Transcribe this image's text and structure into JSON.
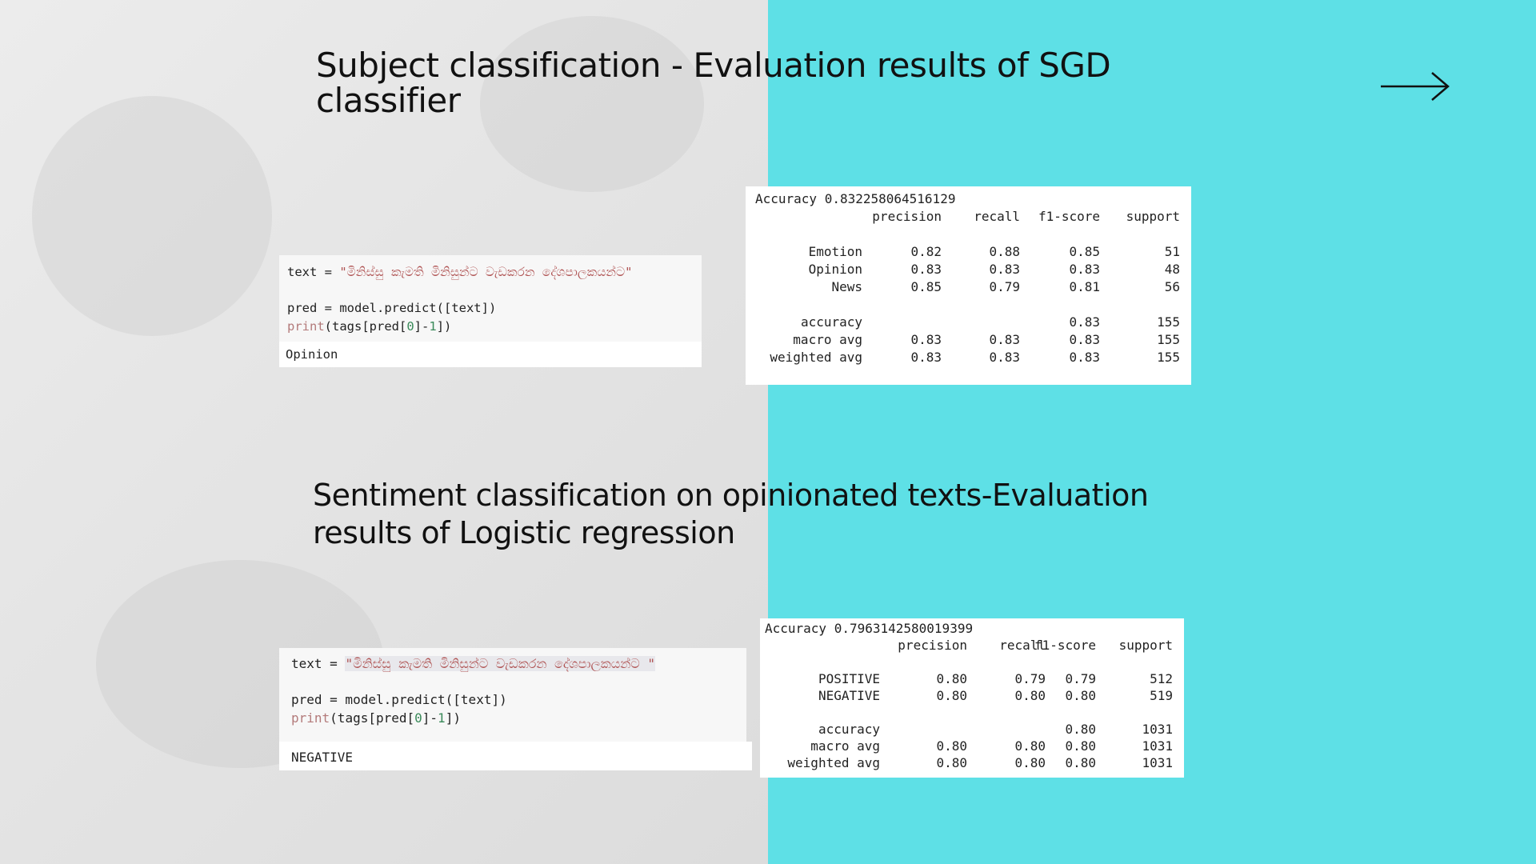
{
  "slide": {
    "title_1": "Subject classification - Evaluation results of SGD classifier",
    "title_2": "Sentiment classification on opinionated texts-Evaluation results of Logistic regression"
  },
  "icons": {
    "next": "right-arrow-icon"
  },
  "colors": {
    "accent": "#5ee0e6",
    "left_panel": "#e6e6e6"
  },
  "code_1": {
    "line_1_prefix": "text = ",
    "line_1_string": "\"මිනිස්සු කැමති මිනිසුන්ට වැඩකරන දේශපාලකයන්ට\"",
    "line_2_prefix": "pred = model.predict([text])",
    "line_3_fn": "print",
    "line_3_a": "(tags[pred[",
    "line_3_num0": "0",
    "line_3_b": "]-",
    "line_3_num1": "1",
    "line_3_c": "])",
    "output": "Opinion"
  },
  "code_2": {
    "line_1_prefix": "text = ",
    "line_1_string": "\"මිනිස්සු කැමති මිනිසුන්ට වැඩකරන දේශපාලකයන්ට \"",
    "line_2_prefix": "pred = model.predict([text])",
    "line_3_fn": "print",
    "line_3_a": "(tags[pred[",
    "line_3_num0": "0",
    "line_3_b": "]-",
    "line_3_num1": "1",
    "line_3_c": "])",
    "output": "NEGATIVE"
  },
  "report_1": {
    "accuracy_line": "Accuracy 0.832258064516129",
    "headers": [
      "precision",
      "recall",
      "f1-score",
      "support"
    ],
    "rows": [
      {
        "label": "Emotion",
        "values": [
          "0.82",
          "0.88",
          "0.85",
          "51"
        ]
      },
      {
        "label": "Opinion",
        "values": [
          "0.83",
          "0.83",
          "0.83",
          "48"
        ]
      },
      {
        "label": "News",
        "values": [
          "0.85",
          "0.79",
          "0.81",
          "56"
        ]
      },
      {
        "label": "accuracy",
        "values": [
          "",
          "",
          "0.83",
          "155"
        ]
      },
      {
        "label": "macro avg",
        "values": [
          "0.83",
          "0.83",
          "0.83",
          "155"
        ]
      },
      {
        "label": "weighted avg",
        "values": [
          "0.83",
          "0.83",
          "0.83",
          "155"
        ]
      }
    ]
  },
  "report_2": {
    "accuracy_line": "Accuracy 0.7963142580019399",
    "headers": [
      "precision",
      "recall",
      "f1-score",
      "support"
    ],
    "rows": [
      {
        "label": "POSITIVE",
        "values": [
          "0.80",
          "0.79",
          "0.79",
          "512"
        ]
      },
      {
        "label": "NEGATIVE",
        "values": [
          "0.80",
          "0.80",
          "0.80",
          "519"
        ]
      },
      {
        "label": "accuracy",
        "values": [
          "",
          "",
          "0.80",
          "1031"
        ]
      },
      {
        "label": "macro avg",
        "values": [
          "0.80",
          "0.80",
          "0.80",
          "1031"
        ]
      },
      {
        "label": "weighted avg",
        "values": [
          "0.80",
          "0.80",
          "0.80",
          "1031"
        ]
      }
    ]
  }
}
